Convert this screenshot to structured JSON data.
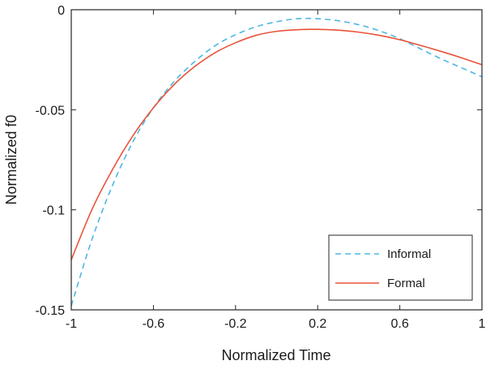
{
  "chart_data": {
    "type": "line",
    "title": "",
    "xlabel": "Normalized Time",
    "ylabel": "Normalized f0",
    "xlim": [
      -1,
      1
    ],
    "ylim": [
      -0.15,
      0
    ],
    "xticks": [
      -1,
      -0.6,
      -0.2,
      0.2,
      0.6,
      1
    ],
    "xtick_labels": [
      "-1",
      "-0.6",
      "-0.2",
      "0.2",
      "0.6",
      "1"
    ],
    "yticks": [
      -0.15,
      -0.1,
      -0.05,
      0
    ],
    "ytick_labels": [
      "-0.15",
      "-0.1",
      "-0.05",
      "0"
    ],
    "grid": false,
    "legend_position": "bottom-right",
    "series": [
      {
        "name": "Informal",
        "color": "#4db8e0",
        "style": "dashed",
        "x": [
          -1,
          -0.9,
          -0.8,
          -0.7,
          -0.6,
          -0.5,
          -0.4,
          -0.3,
          -0.2,
          -0.1,
          0,
          0.1,
          0.2,
          0.3,
          0.4,
          0.5,
          0.6,
          0.7,
          0.8,
          0.9,
          1
        ],
        "y": [
          -0.148,
          -0.115,
          -0.088,
          -0.066,
          -0.049,
          -0.036,
          -0.026,
          -0.018,
          -0.0125,
          -0.0085,
          -0.006,
          -0.0045,
          -0.0045,
          -0.0055,
          -0.0075,
          -0.0105,
          -0.0145,
          -0.0195,
          -0.0245,
          -0.029,
          -0.0335
        ]
      },
      {
        "name": "Formal",
        "color": "#e8533a",
        "style": "solid",
        "x": [
          -1,
          -0.9,
          -0.8,
          -0.7,
          -0.6,
          -0.5,
          -0.4,
          -0.3,
          -0.2,
          -0.1,
          0,
          0.1,
          0.2,
          0.3,
          0.4,
          0.5,
          0.6,
          0.7,
          0.8,
          0.9,
          1
        ],
        "y": [
          -0.125,
          -0.1,
          -0.08,
          -0.063,
          -0.049,
          -0.0375,
          -0.0285,
          -0.0215,
          -0.0165,
          -0.0128,
          -0.0108,
          -0.01,
          -0.0098,
          -0.0102,
          -0.0112,
          -0.0128,
          -0.015,
          -0.0178,
          -0.0208,
          -0.024,
          -0.0275
        ]
      }
    ]
  }
}
